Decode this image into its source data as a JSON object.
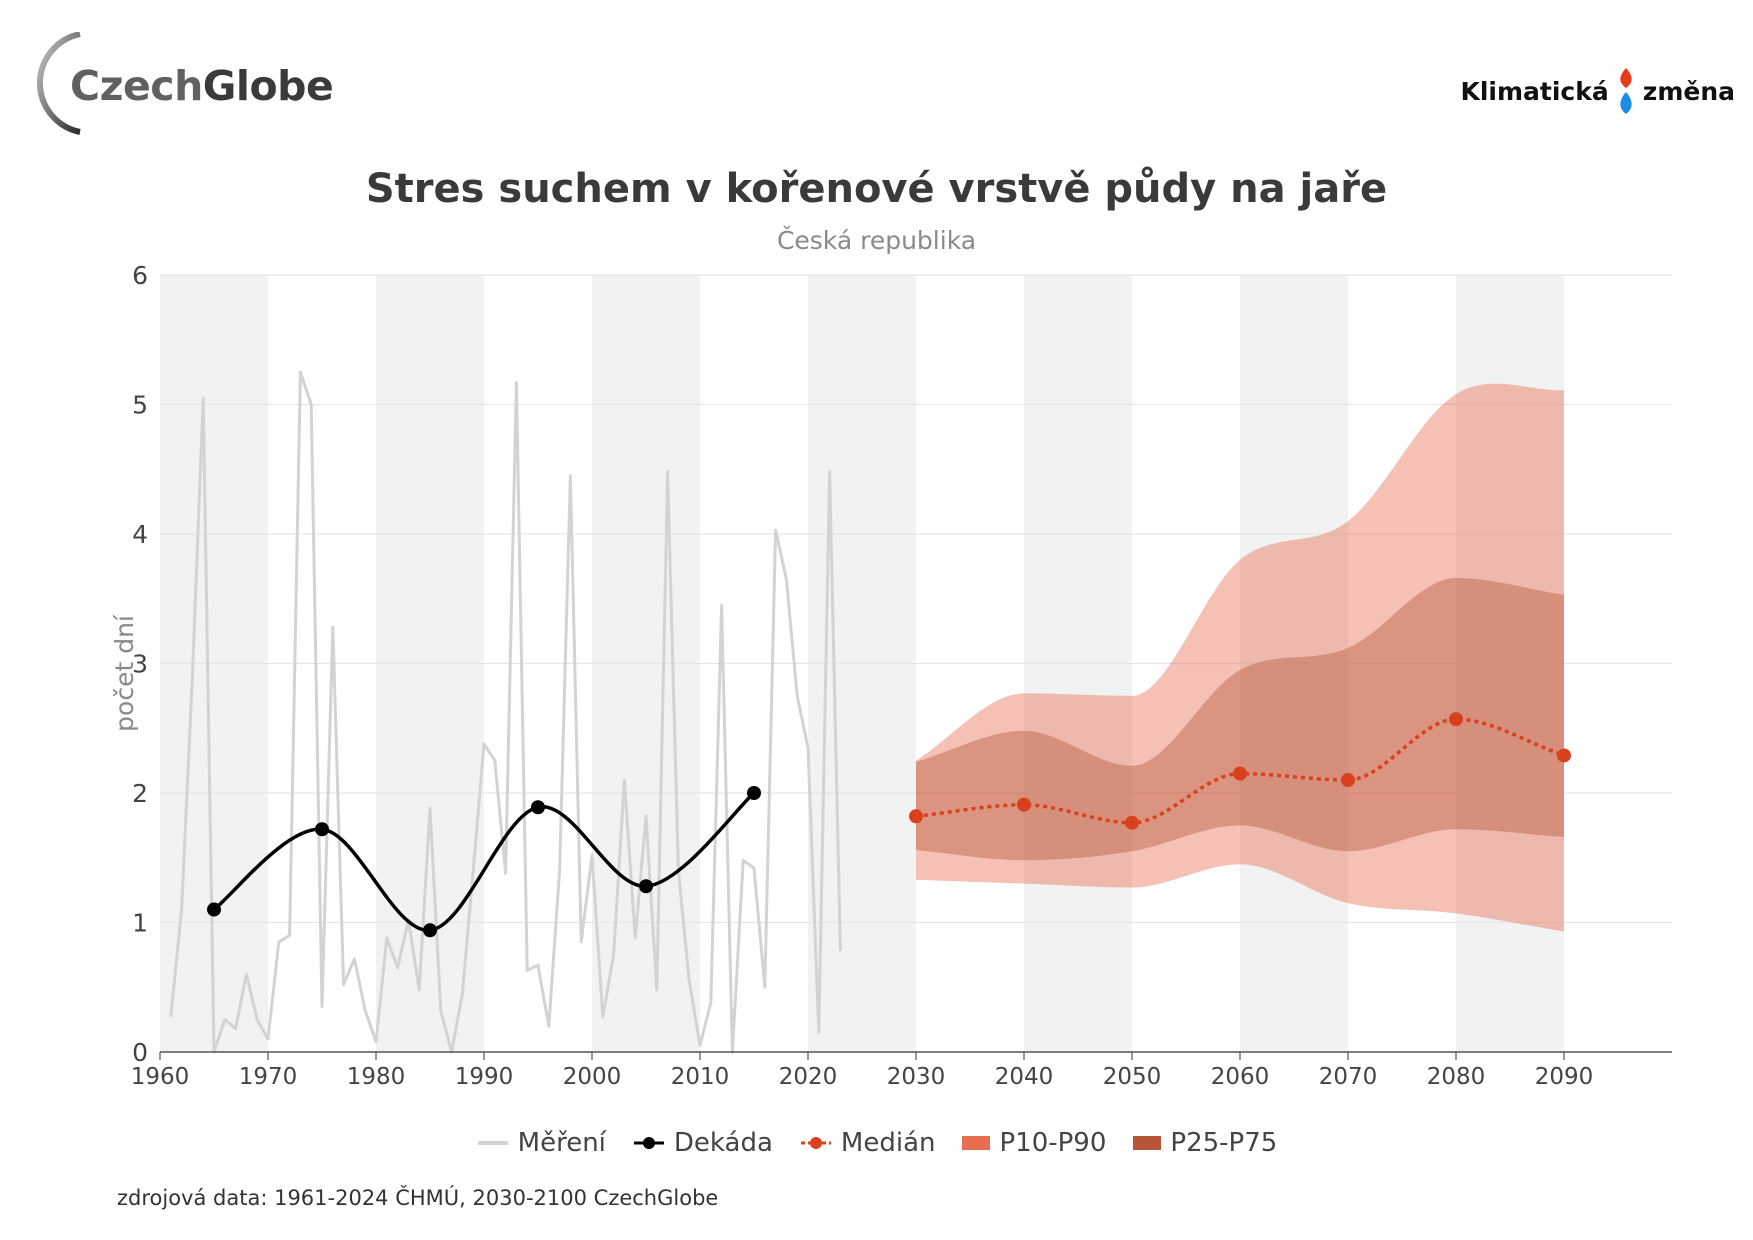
{
  "logo": {
    "word1": "Czech",
    "word2": "Globe"
  },
  "brand": {
    "word1": "Klimatická",
    "word2": "změna"
  },
  "chart_data": {
    "type": "line",
    "title": "Stres suchem v kořenové vrstvě půdy na jaře",
    "subtitle": "Česká republika",
    "ylabel": "počet dní",
    "xlim": [
      1960,
      2100
    ],
    "ylim": [
      0,
      6
    ],
    "yticks": [
      0,
      1,
      2,
      3,
      4,
      5,
      6
    ],
    "xticks": [
      1960,
      1970,
      1980,
      1990,
      2000,
      2010,
      2020,
      2030,
      2040,
      2050,
      2060,
      2070,
      2080,
      2090
    ],
    "shaded_decades": [
      [
        1960,
        1970
      ],
      [
        1980,
        1990
      ],
      [
        2000,
        2010
      ],
      [
        2020,
        2030
      ],
      [
        2040,
        2050
      ],
      [
        2060,
        2070
      ],
      [
        2080,
        2090
      ]
    ],
    "series": [
      {
        "name": "Měření",
        "type": "line",
        "color": "#d3d3d3",
        "x": [
          1961,
          1962,
          1963,
          1964,
          1965,
          1966,
          1967,
          1968,
          1969,
          1970,
          1971,
          1972,
          1973,
          1974,
          1975,
          1976,
          1977,
          1978,
          1979,
          1980,
          1981,
          1982,
          1983,
          1984,
          1985,
          1986,
          1987,
          1988,
          1989,
          1990,
          1991,
          1992,
          1993,
          1994,
          1995,
          1996,
          1997,
          1998,
          1999,
          2000,
          2001,
          2002,
          2003,
          2004,
          2005,
          2006,
          2007,
          2008,
          2009,
          2010,
          2011,
          2012,
          2013,
          2014,
          2015,
          2016,
          2017,
          2018,
          2019,
          2020,
          2021,
          2022,
          2023
        ],
        "y": [
          0.27,
          1.1,
          2.9,
          5.05,
          0.0,
          0.25,
          0.18,
          0.6,
          0.25,
          0.1,
          0.85,
          0.9,
          5.25,
          5.0,
          0.35,
          3.28,
          0.52,
          0.72,
          0.32,
          0.08,
          0.88,
          0.65,
          1.02,
          0.48,
          1.88,
          0.32,
          0.0,
          0.45,
          1.4,
          2.38,
          2.25,
          1.38,
          5.17,
          0.63,
          0.67,
          0.2,
          1.4,
          4.45,
          0.85,
          1.52,
          0.27,
          0.75,
          2.1,
          0.88,
          1.82,
          0.48,
          4.48,
          1.4,
          0.55,
          0.05,
          0.38,
          3.45,
          0.0,
          1.48,
          1.42,
          0.5,
          4.03,
          3.65,
          2.75,
          2.35,
          0.15,
          4.48,
          0.78
        ]
      },
      {
        "name": "Dekáda",
        "type": "line",
        "color": "#000000",
        "x": [
          1965,
          1975,
          1985,
          1995,
          2005,
          2015
        ],
        "y": [
          1.1,
          1.72,
          0.94,
          1.89,
          1.28,
          2.0
        ]
      },
      {
        "name": "Medián",
        "type": "line",
        "color": "#d9411e",
        "dashed": true,
        "x": [
          2030,
          2040,
          2050,
          2060,
          2070,
          2080,
          2090
        ],
        "y": [
          1.82,
          1.91,
          1.77,
          2.15,
          2.1,
          2.57,
          2.29
        ]
      },
      {
        "name": "P10-P90",
        "type": "area",
        "color": "#e86c4f",
        "x": [
          2030,
          2040,
          2050,
          2060,
          2070,
          2080,
          2090
        ],
        "y_low": [
          1.33,
          1.3,
          1.27,
          1.45,
          1.15,
          1.07,
          0.93
        ],
        "y_high": [
          2.25,
          2.77,
          2.75,
          3.8,
          4.1,
          5.08,
          5.11
        ]
      },
      {
        "name": "P25-P75",
        "type": "area",
        "color": "#b85538",
        "x": [
          2030,
          2040,
          2050,
          2060,
          2070,
          2080,
          2090
        ],
        "y_low": [
          1.56,
          1.48,
          1.55,
          1.75,
          1.55,
          1.72,
          1.66
        ],
        "y_high": [
          2.24,
          2.48,
          2.21,
          2.95,
          3.12,
          3.66,
          3.53
        ]
      }
    ]
  },
  "legend": [
    "Měření",
    "Dekáda",
    "Medián",
    "P10-P90",
    "P25-P75"
  ],
  "source": "zdrojová data: 1961-2024 ČHMÚ, 2030-2100 CzechGlobe"
}
